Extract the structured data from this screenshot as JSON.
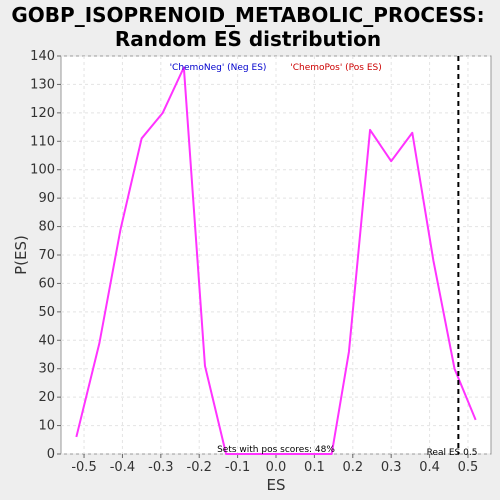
{
  "title_line1": "GOBP_ISOPRENOID_METABOLIC_PROCESS:",
  "title_line2": "Random ES distribution",
  "chart_data": {
    "type": "line",
    "title": "GOBP_ISOPRENOID_METABOLIC_PROCESS: Random ES distribution",
    "xlabel": "ES",
    "ylabel": "P(ES)",
    "xlim": [
      -0.56,
      0.56
    ],
    "ylim": [
      0,
      140
    ],
    "xticks": [
      -0.5,
      -0.4,
      -0.3,
      -0.2,
      -0.1,
      0.0,
      0.1,
      0.2,
      0.3,
      0.4,
      0.5
    ],
    "xtick_labels": [
      "-0.5",
      "-0.4",
      "-0.3",
      "-0.2",
      "-0.1",
      "0.0",
      "0.1",
      "0.2",
      "0.3",
      "0.4",
      "0.5"
    ],
    "yticks": [
      0,
      10,
      20,
      30,
      40,
      50,
      60,
      70,
      80,
      90,
      100,
      110,
      120,
      130,
      140
    ],
    "ytick_labels": [
      "0",
      "10",
      "20",
      "30",
      "40",
      "50",
      "60",
      "70",
      "80",
      "90",
      "100",
      "110",
      "120",
      "130",
      "140"
    ],
    "grid": true,
    "series": [
      {
        "color": "#ff33ff",
        "x": [
          -0.52,
          -0.46,
          -0.405,
          -0.35,
          -0.295,
          -0.24,
          -0.185,
          -0.13,
          0.145,
          0.19,
          0.245,
          0.3,
          0.355,
          0.41,
          0.465,
          0.52
        ],
        "y": [
          6,
          39,
          79,
          111,
          120,
          136,
          31,
          0,
          0,
          36,
          114,
          103,
          113,
          68,
          30,
          12
        ]
      }
    ],
    "real_es": 0.475,
    "legend_neg": "'ChemoNeg' (Neg ES)",
    "legend_pos": "'ChemoPos' (Pos ES)",
    "neg_color": "#0000cc",
    "pos_color": "#cc0000",
    "annotation_pos_scores": "Sets with pos scores: 48%",
    "annotation_real_es": "Real ES 0.5"
  }
}
